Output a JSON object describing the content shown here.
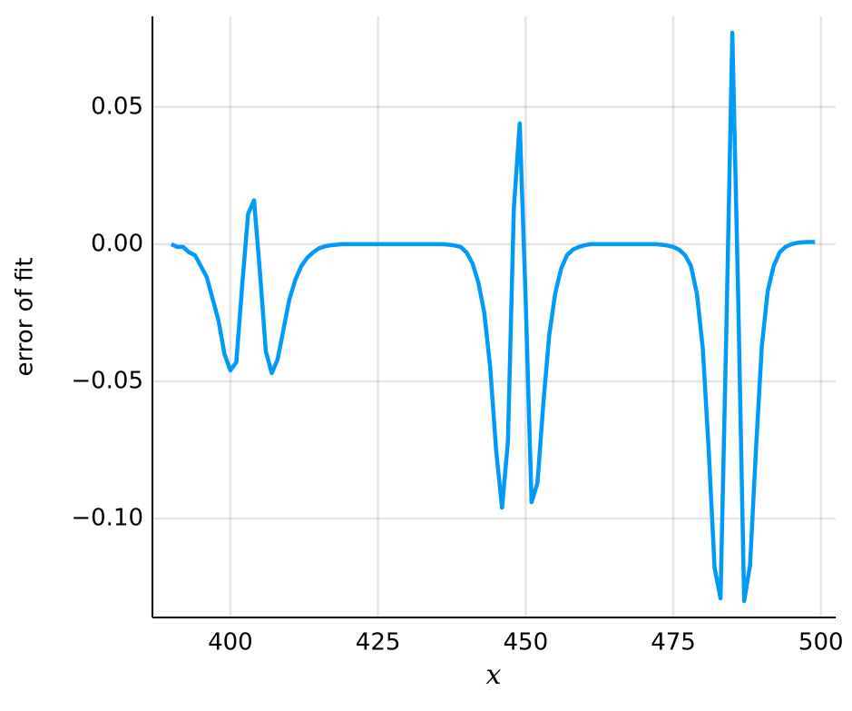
{
  "chart_data": {
    "type": "line",
    "xlabel": "x",
    "ylabel": "error of fit",
    "x": [
      390,
      391,
      392,
      393,
      394,
      395,
      396,
      397,
      398,
      399,
      400,
      401,
      402,
      403,
      404,
      405,
      406,
      407,
      408,
      409,
      410,
      411,
      412,
      413,
      414,
      415,
      416,
      417,
      418,
      419,
      420,
      421,
      422,
      423,
      424,
      425,
      426,
      427,
      428,
      429,
      430,
      431,
      432,
      433,
      434,
      435,
      436,
      437,
      438,
      439,
      440,
      441,
      442,
      443,
      444,
      445,
      446,
      447,
      448,
      449,
      450,
      451,
      452,
      453,
      454,
      455,
      456,
      457,
      458,
      459,
      460,
      461,
      462,
      463,
      464,
      465,
      466,
      467,
      468,
      469,
      470,
      471,
      472,
      473,
      474,
      475,
      476,
      477,
      478,
      479,
      480,
      481,
      482,
      483,
      484,
      485,
      486,
      487,
      488,
      489,
      490,
      491,
      492,
      493,
      494,
      495,
      496,
      497,
      498,
      499
    ],
    "series": [
      {
        "color": "#009af9",
        "values": [
          0,
          -0.001,
          -0.001,
          -0.003,
          -0.004,
          -0.008,
          -0.012,
          -0.02,
          -0.028,
          -0.04,
          -0.046,
          -0.043,
          -0.015,
          0.011,
          0.016,
          -0.01,
          -0.039,
          -0.047,
          -0.042,
          -0.031,
          -0.02,
          -0.013,
          -0.008,
          -0.005,
          -0.003,
          -0.0015,
          -0.0008,
          -0.0004,
          -0.0002,
          0,
          0,
          0,
          0,
          0,
          0,
          0,
          0,
          0,
          0,
          0,
          0,
          0,
          0,
          0,
          0,
          0,
          0,
          -0.0002,
          -0.0005,
          -0.001,
          -0.003,
          -0.007,
          -0.014,
          -0.025,
          -0.045,
          -0.075,
          -0.096,
          -0.072,
          0.013,
          0.044,
          -0.02,
          -0.094,
          -0.087,
          -0.058,
          -0.033,
          -0.018,
          -0.009,
          -0.004,
          -0.002,
          -0.001,
          -0.0004,
          0,
          0,
          0,
          0,
          0,
          0,
          0,
          0,
          0,
          0,
          0,
          0,
          -0.0002,
          -0.0005,
          -0.001,
          -0.002,
          -0.004,
          -0.008,
          -0.018,
          -0.038,
          -0.075,
          -0.118,
          -0.129,
          -0.03,
          0.077,
          -0.02,
          -0.13,
          -0.117,
          -0.075,
          -0.037,
          -0.017,
          -0.008,
          -0.003,
          -0.001,
          0,
          0.0005,
          0.0007,
          0.0008,
          0.0008
        ]
      }
    ],
    "xlim": [
      386.8,
      502.5
    ],
    "xticks": [
      400,
      425,
      450,
      475,
      500
    ],
    "ylim": [
      -0.136,
      0.083
    ],
    "yticks": [
      {
        "value": -0.1,
        "label": "−0.10"
      },
      {
        "value": -0.05,
        "label": "−0.05"
      },
      {
        "value": 0,
        "label": "0.00"
      },
      0.05
    ],
    "grid": true
  }
}
